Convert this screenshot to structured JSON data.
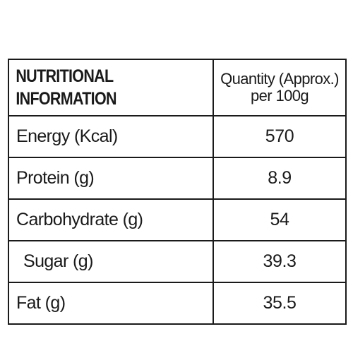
{
  "table": {
    "header": {
      "label_line1": "NUTRITIONAL",
      "label_line2": "INFORMATION",
      "value_line1": "Quantity (Approx.)",
      "value_line2": "per 100g"
    },
    "rows": [
      {
        "label": "Energy (Kcal)",
        "value": "570"
      },
      {
        "label": "Protein (g)",
        "value": "8.9"
      },
      {
        "label": "Carbohydrate (g)",
        "value": "54"
      },
      {
        "label": "Sugar (g)",
        "value": "39.3"
      },
      {
        "label": "Fat (g)",
        "value": "35.5"
      }
    ]
  }
}
